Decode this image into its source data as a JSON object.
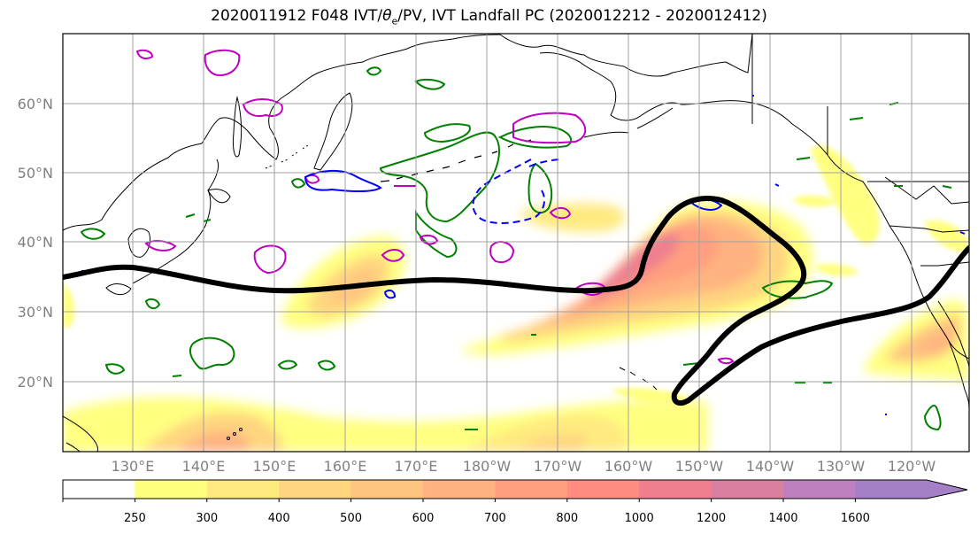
{
  "title": {
    "prefix": "2020011912 F048 IVT/",
    "theta": "θ",
    "theta_sub": "e",
    "suffix": "/PV, IVT Landfall PC (2020012212 - 2020012412)"
  },
  "axes": {
    "lat_labels": [
      "60°N",
      "50°N",
      "40°N",
      "30°N",
      "20°N"
    ],
    "lon_labels": [
      "130°E",
      "140°E",
      "150°E",
      "160°E",
      "170°E",
      "180°W",
      "170°W",
      "160°W",
      "150°W",
      "140°W",
      "130°W",
      "120°W"
    ]
  },
  "colorbar": {
    "ticks": [
      "250",
      "300",
      "400",
      "500",
      "600",
      "700",
      "800",
      "1000",
      "1200",
      "1400",
      "1600"
    ],
    "colors": [
      "#ffffff",
      "#ffff80",
      "#ffea80",
      "#ffd580",
      "#ffc580",
      "#ffb380",
      "#ff9f7f",
      "#ff8c80",
      "#ef7f8f",
      "#d97f9f",
      "#bf80bf",
      "#a680c6"
    ]
  },
  "colors": {
    "landfall_contour": "#000000",
    "theta_e": "#008000",
    "pv_positive": "#c000c0",
    "pv_negative": "#0000ff",
    "grid": "#a0a0a0"
  }
}
